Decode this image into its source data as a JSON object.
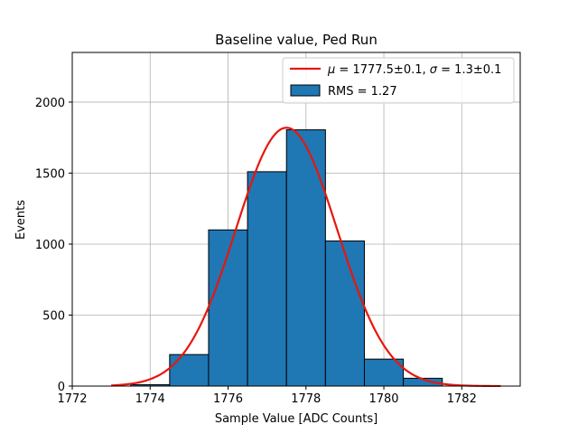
{
  "chart_data": {
    "type": "bar",
    "title": "Baseline value, Ped Run",
    "xlabel": "Sample Value [ADC Counts]",
    "ylabel": "Events",
    "xlim": [
      1772,
      1783.5
    ],
    "ylim": [
      0,
      2350
    ],
    "xticks": [
      1772,
      1774,
      1776,
      1778,
      1780,
      1782
    ],
    "yticks": [
      0,
      500,
      1000,
      1500,
      2000
    ],
    "grid": true,
    "legend_position": "top-right",
    "bins": [
      {
        "left": 1773.5,
        "right": 1774.5,
        "value": 10
      },
      {
        "left": 1774.5,
        "right": 1775.5,
        "value": 222
      },
      {
        "left": 1775.5,
        "right": 1776.5,
        "value": 1100
      },
      {
        "left": 1776.5,
        "right": 1777.5,
        "value": 1510
      },
      {
        "left": 1777.5,
        "right": 1778.5,
        "value": 1805
      },
      {
        "left": 1778.5,
        "right": 1779.5,
        "value": 1022
      },
      {
        "left": 1779.5,
        "right": 1780.5,
        "value": 190
      },
      {
        "left": 1780.5,
        "right": 1781.5,
        "value": 55
      }
    ],
    "fit": {
      "mu": 1777.5,
      "sigma": 1.3,
      "amplitude": 1820,
      "x_range": [
        1773.0,
        1783.0
      ]
    },
    "series": [
      {
        "name": "$\\mu = 1777.5\\pm0.1$, $\\sigma = 1.3\\pm0.1$",
        "label_mu": "μ",
        "label_mu_rest": " = 1777.5±0.1, ",
        "label_sigma": "σ",
        "label_sigma_rest": " = 1.3±0.1",
        "color": "#e8160c",
        "kind": "line"
      },
      {
        "name": "RMS = 1.27",
        "color": "#1f77b4",
        "kind": "bar"
      }
    ]
  }
}
